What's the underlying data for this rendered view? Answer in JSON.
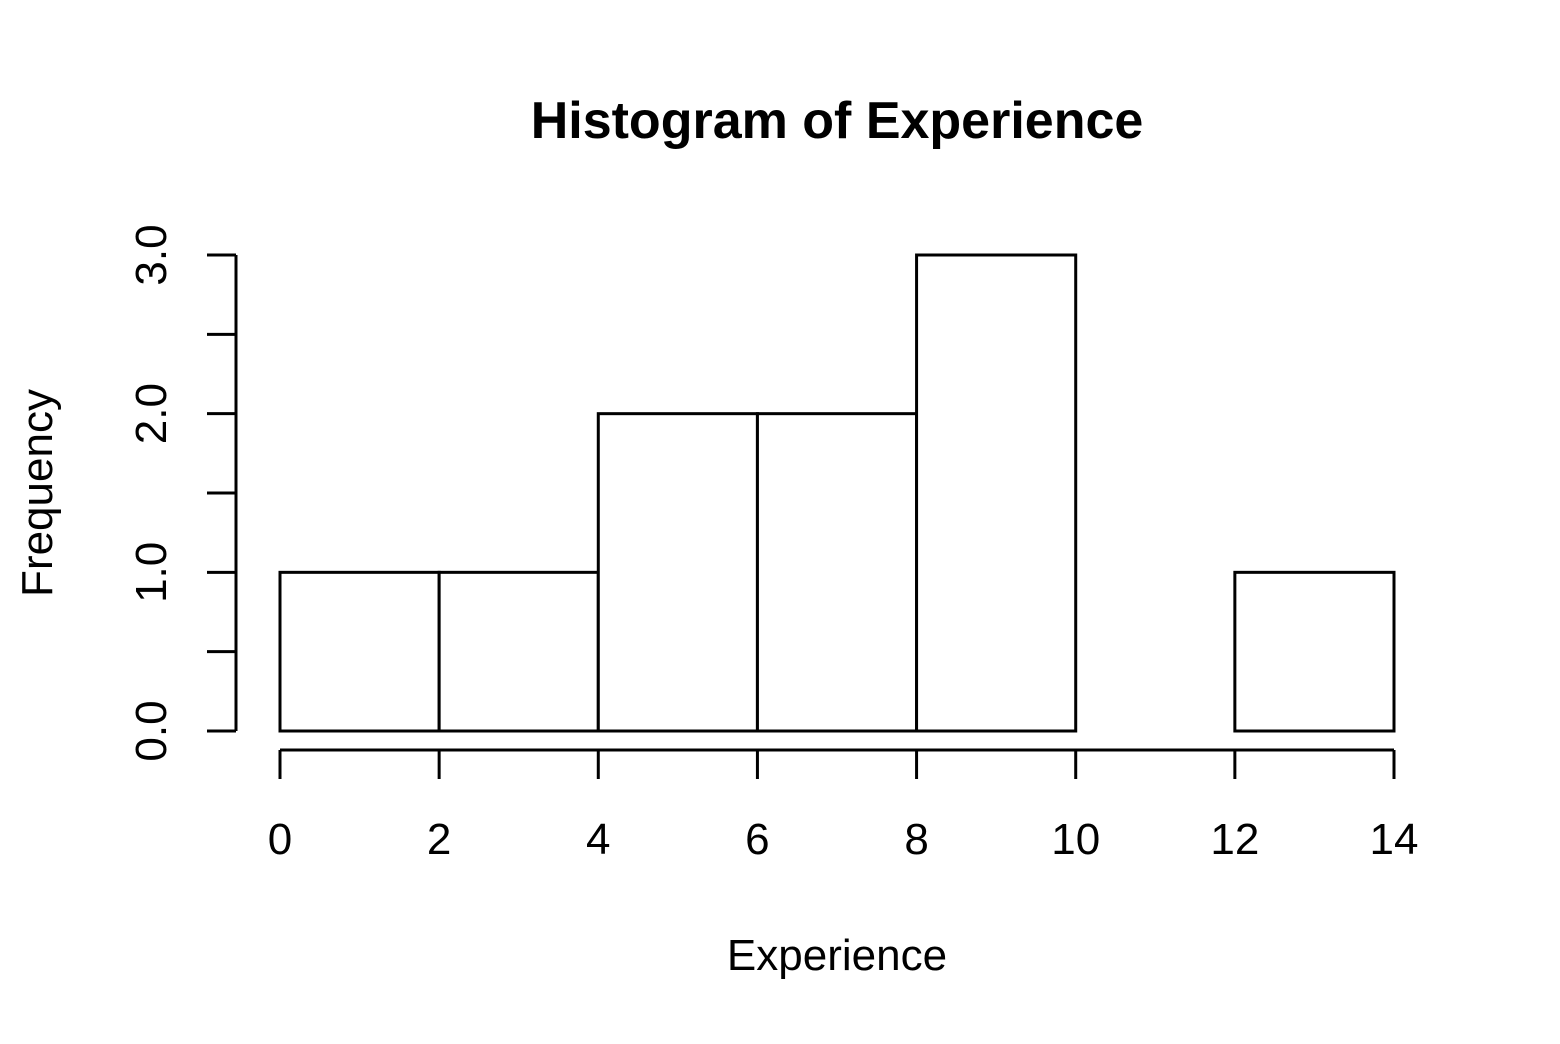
{
  "chart_data": {
    "type": "bar",
    "title": "Histogram of Experience",
    "xlabel": "Experience",
    "ylabel": "Frequency",
    "bin_edges": [
      0,
      2,
      4,
      6,
      8,
      10,
      12,
      14
    ],
    "values": [
      1,
      1,
      2,
      2,
      3,
      0,
      1
    ],
    "xlim": [
      0,
      14
    ],
    "ylim": [
      0,
      3
    ],
    "x_ticks": [
      0,
      2,
      4,
      6,
      8,
      10,
      12,
      14
    ],
    "x_tick_labels": [
      "0",
      "2",
      "4",
      "6",
      "8",
      "10",
      "12",
      "14"
    ],
    "y_ticks": [
      0,
      0.5,
      1,
      1.5,
      2,
      2.5,
      3
    ],
    "y_tick_labels": [
      "0.0",
      "",
      "1.0",
      "",
      "2.0",
      "",
      "3.0"
    ],
    "grid": false,
    "legend": "none",
    "colors": {
      "bar_fill": "#ffffff",
      "stroke": "#000000"
    }
  }
}
